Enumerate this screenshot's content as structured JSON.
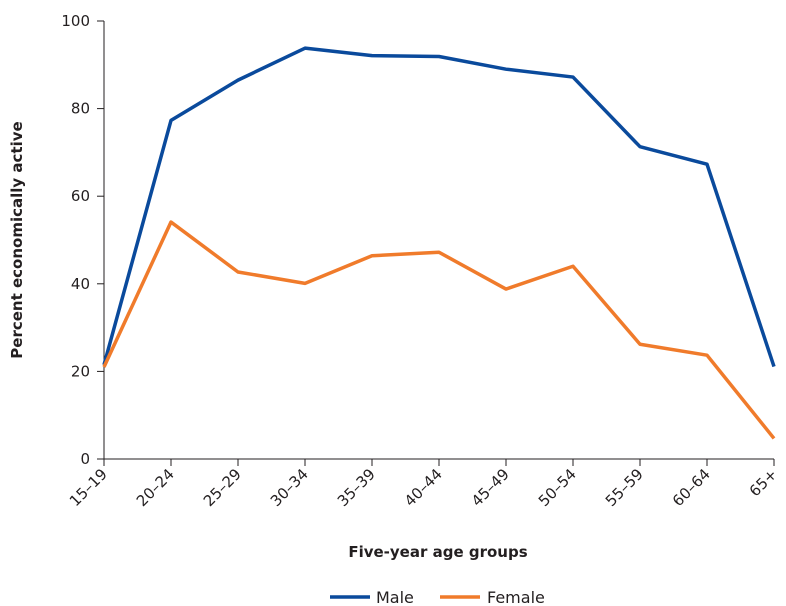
{
  "chart_data": {
    "type": "line",
    "title": "",
    "xlabel": "Five-year age groups",
    "ylabel": "Percent economically active",
    "categories": [
      "15–19",
      "20–24",
      "25–29",
      "30–34",
      "35–39",
      "40–44",
      "45–49",
      "50–54",
      "55–59",
      "60–64",
      "65+"
    ],
    "ylim": [
      0,
      100
    ],
    "yticks": [
      "0",
      "20",
      "40",
      "60",
      "80",
      "100"
    ],
    "grid": false,
    "legend_position": "bottom-center",
    "series": [
      {
        "name": "Male",
        "color": "#0a4a9c",
        "values": [
          21.5,
          77.3,
          86.5,
          93.8,
          92.1,
          91.9,
          89.0,
          87.2,
          71.3,
          67.3,
          21.1
        ]
      },
      {
        "name": "Female",
        "color": "#f07b2b",
        "values": [
          21.0,
          54.1,
          42.7,
          40.1,
          46.4,
          47.2,
          38.8,
          44.0,
          26.2,
          23.7,
          4.7
        ]
      }
    ]
  }
}
